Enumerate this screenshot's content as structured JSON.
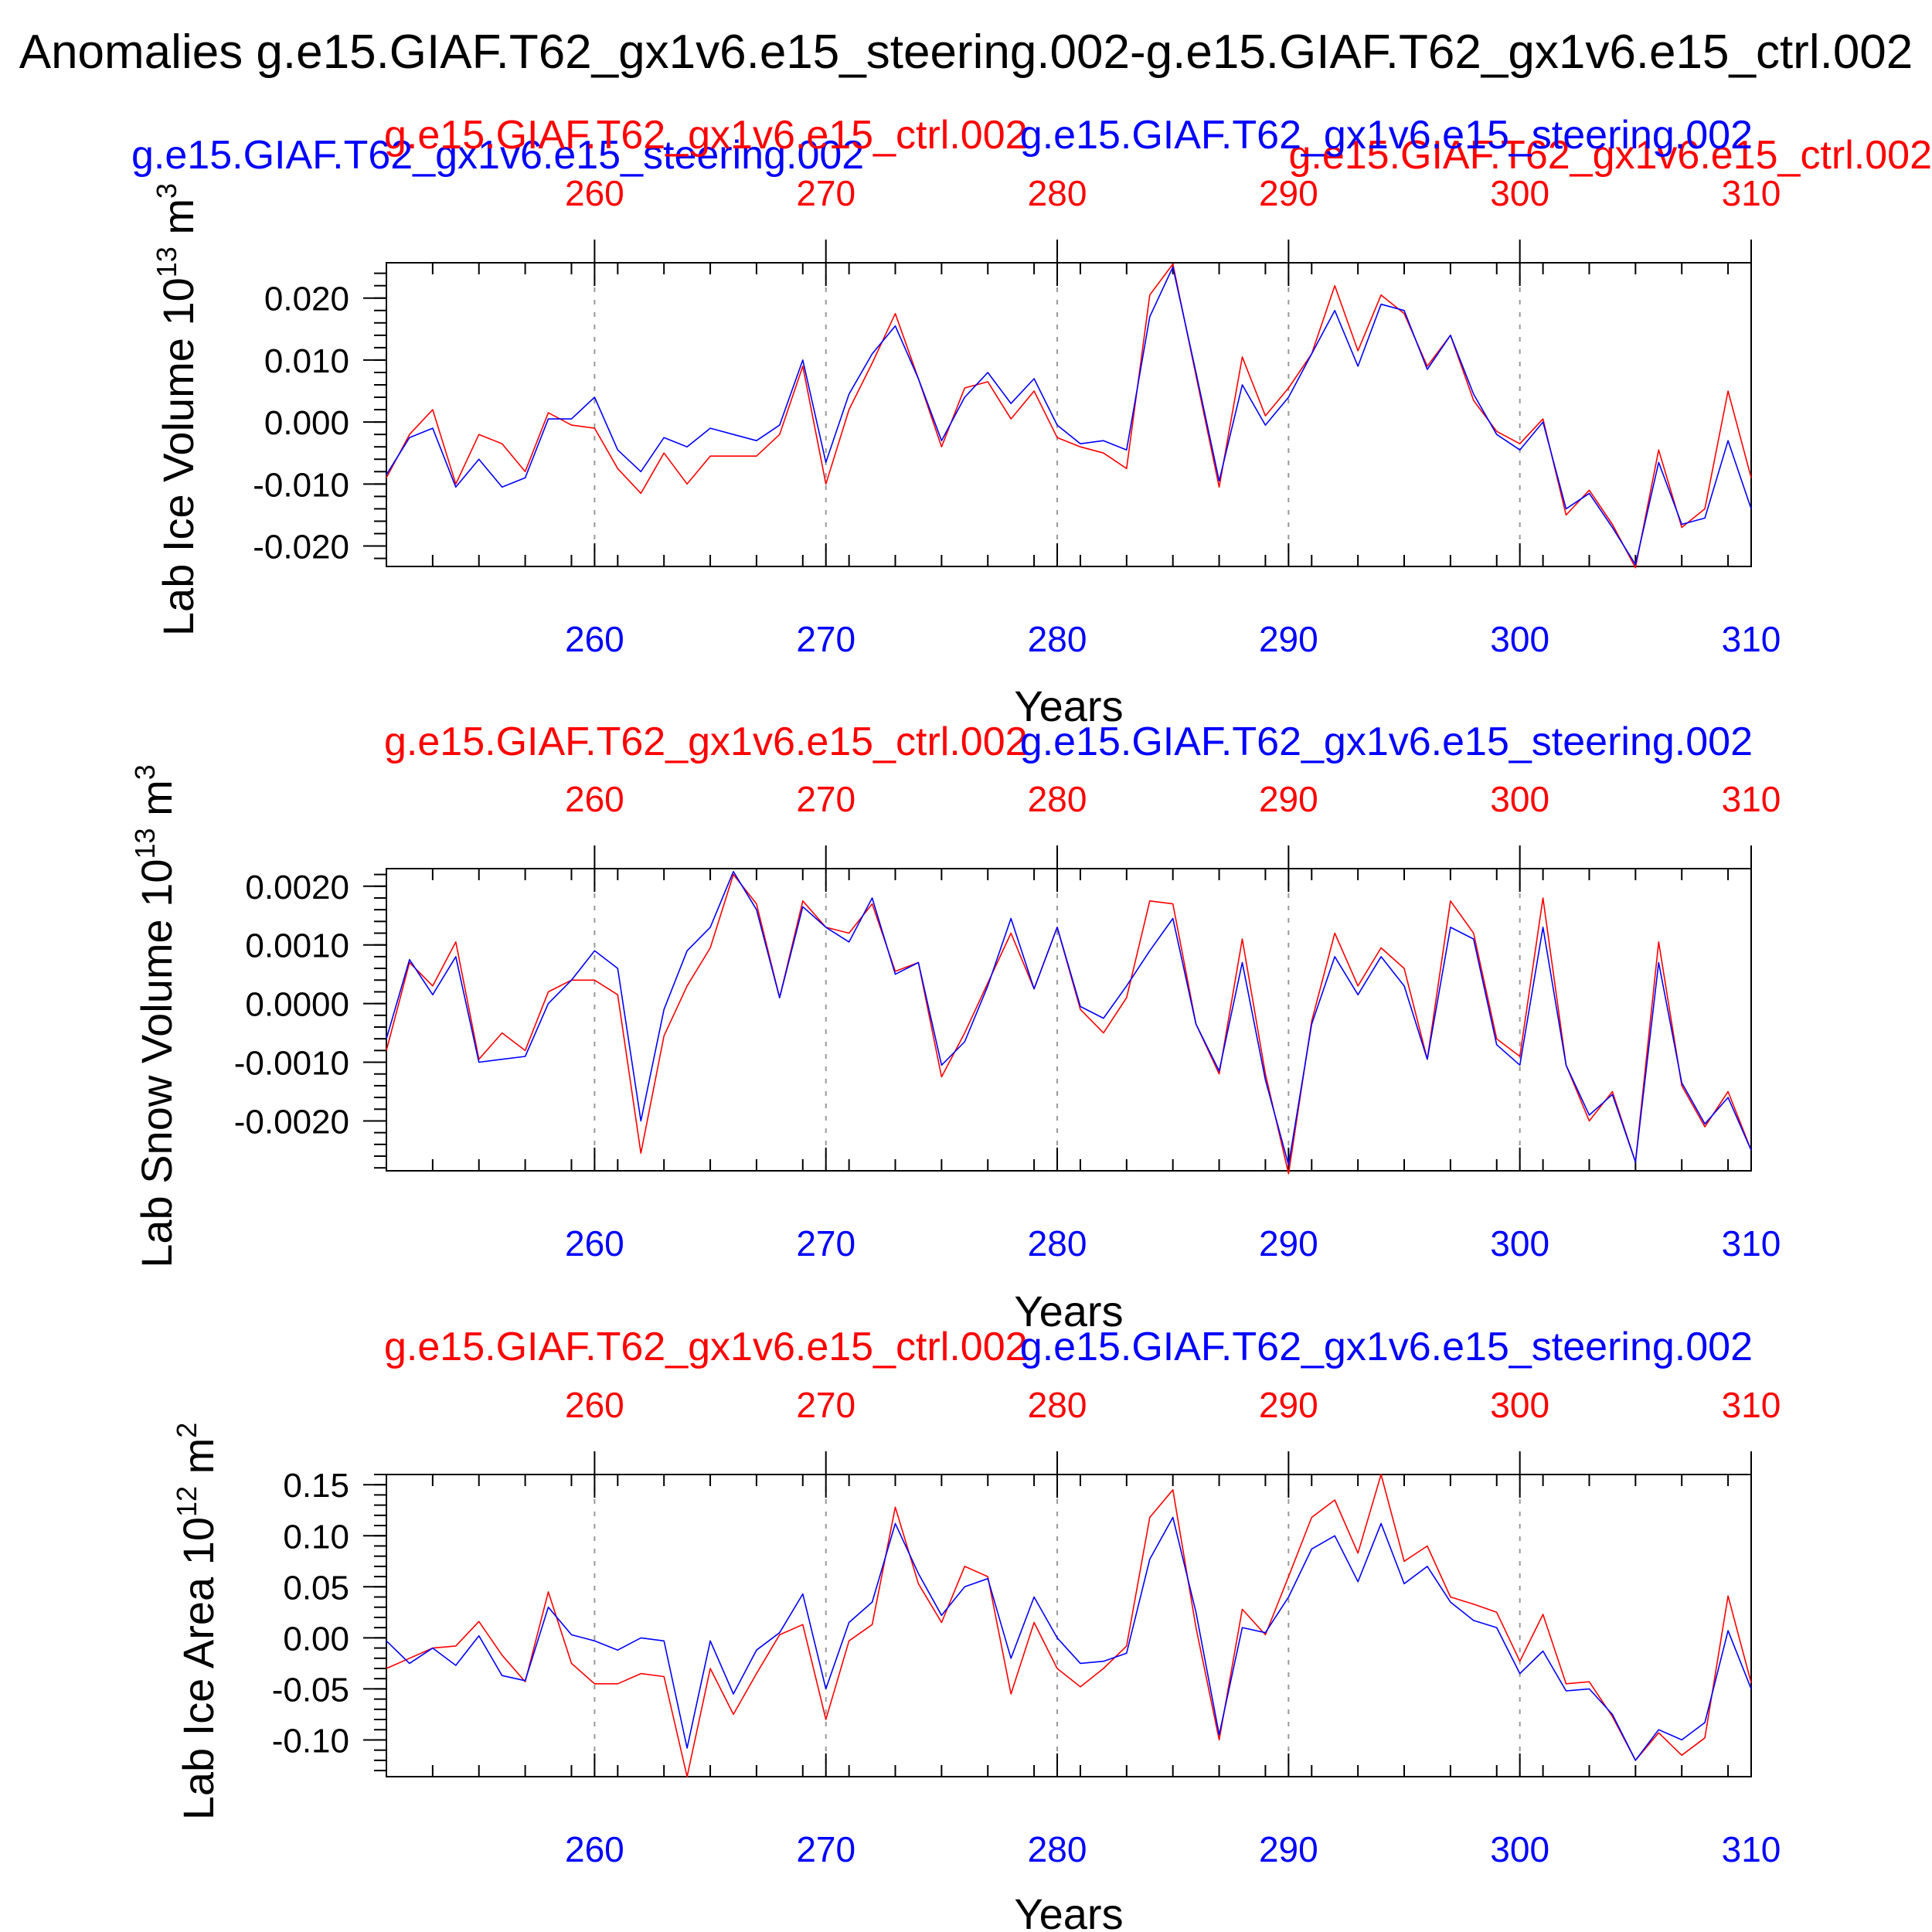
{
  "figure": {
    "main_title": "Anomalies g.e15.GIAF.T62_gx1v6.e15_steering.002-g.e15.GIAF.T62_gx1v6.e15_ctrl.002",
    "colors": {
      "ctrl": "#ff0000",
      "steering": "#0000ff",
      "axis": "#000000",
      "grid": "#999999"
    }
  },
  "chart_data": [
    {
      "type": "line",
      "title_left": "g.e15.GIAF.T62_gx1v6.e15_steering.002",
      "title_right": "g.e15.GIAF.T62_gx1v6.e15_ctrl.002",
      "top_series_label": "g.e15.GIAF.T62_gx1v6.e15_ctrl.002",
      "bottom_series_label": "g.e15.GIAF.T62_gx1v6.e15_steering.002",
      "ylabel": "Lab Ice Volume 10",
      "ylabel_exp": "13",
      "ylabel_unit": "m",
      "ylabel_unit_exp": "3",
      "xlabel": "Years",
      "x_ticks": [
        260,
        270,
        280,
        290,
        300,
        310
      ],
      "x_tick_labels": [
        "260",
        "270",
        "280",
        "290",
        "300",
        "310"
      ],
      "y_ticks": [
        -0.02,
        -0.01,
        0.0,
        0.01,
        0.02
      ],
      "y_tick_labels": [
        "-0.020",
        "-0.010",
        "0.000",
        "0.010",
        "0.020"
      ],
      "xlim": [
        251,
        310
      ],
      "ylim": [
        -0.0233,
        0.0257
      ],
      "x": [
        251,
        252,
        253,
        254,
        255,
        256,
        257,
        258,
        259,
        260,
        261,
        262,
        263,
        264,
        265,
        266,
        267,
        268,
        269,
        270,
        271,
        272,
        273,
        274,
        275,
        276,
        277,
        278,
        279,
        280,
        281,
        282,
        283,
        284,
        285,
        286,
        287,
        288,
        289,
        290,
        291,
        292,
        293,
        294,
        295,
        296,
        297,
        298,
        299,
        300,
        301,
        302,
        303,
        304,
        305,
        306,
        307,
        308,
        309,
        310
      ],
      "series": [
        {
          "name": "g.e15.GIAF.T62_gx1v6.e15_ctrl.002",
          "color": "#ff0000",
          "values": [
            -0.009,
            -0.002,
            0.002,
            -0.01,
            -0.002,
            -0.0035,
            -0.008,
            0.0015,
            -0.0005,
            -0.001,
            -0.0075,
            -0.0115,
            -0.005,
            -0.01,
            -0.0055,
            -0.0055,
            -0.0055,
            -0.002,
            0.009,
            -0.01,
            0.002,
            0.0095,
            0.0175,
            0.007,
            -0.004,
            0.0055,
            0.0065,
            0.0005,
            0.005,
            -0.0025,
            -0.004,
            -0.005,
            -0.0075,
            0.0205,
            0.0255,
            0.0075,
            -0.0105,
            0.0105,
            0.001,
            0.0055,
            0.011,
            0.022,
            0.0115,
            0.0205,
            0.0175,
            0.009,
            0.014,
            0.0035,
            -0.0015,
            -0.0035,
            0.0005,
            -0.015,
            -0.011,
            -0.0165,
            -0.0235,
            -0.0045,
            -0.017,
            -0.014,
            0.005,
            -0.009
          ]
        },
        {
          "name": "g.e15.GIAF.T62_gx1v6.e15_steering.002",
          "color": "#0000ff",
          "values": [
            -0.0085,
            -0.0025,
            -0.001,
            -0.0105,
            -0.006,
            -0.0105,
            -0.009,
            0.0005,
            0.0005,
            0.004,
            -0.0045,
            -0.008,
            -0.0025,
            -0.004,
            -0.001,
            -0.002,
            -0.003,
            -0.0005,
            0.01,
            -0.0065,
            0.0045,
            0.011,
            0.0155,
            0.007,
            -0.003,
            0.004,
            0.008,
            0.003,
            0.007,
            -0.0005,
            -0.0035,
            -0.003,
            -0.0045,
            0.017,
            0.025,
            0.008,
            -0.0095,
            0.006,
            -0.0005,
            0.004,
            0.011,
            0.018,
            0.009,
            0.019,
            0.018,
            0.0085,
            0.014,
            0.0045,
            -0.002,
            -0.0045,
            0.0,
            -0.014,
            -0.0115,
            -0.017,
            -0.023,
            -0.0065,
            -0.0165,
            -0.0155,
            -0.003,
            -0.014
          ]
        }
      ]
    },
    {
      "type": "line",
      "top_series_label": "g.e15.GIAF.T62_gx1v6.e15_ctrl.002",
      "bottom_series_label": "g.e15.GIAF.T62_gx1v6.e15_steering.002",
      "ylabel": "Lab Snow Volume 10",
      "ylabel_exp": "13",
      "ylabel_unit": "m",
      "ylabel_unit_exp": "3",
      "xlabel": "Years",
      "x_ticks": [
        260,
        270,
        280,
        290,
        300,
        310
      ],
      "x_tick_labels": [
        "260",
        "270",
        "280",
        "290",
        "300",
        "310"
      ],
      "y_ticks": [
        -0.002,
        -0.001,
        0.0,
        0.001,
        0.002
      ],
      "y_tick_labels": [
        "-0.0020",
        "-0.0010",
        "0.0000",
        "0.0010",
        "0.0020"
      ],
      "xlim": [
        251,
        310
      ],
      "ylim": [
        -0.00285,
        0.0023
      ],
      "x": [
        251,
        252,
        253,
        254,
        255,
        256,
        257,
        258,
        259,
        260,
        261,
        262,
        263,
        264,
        265,
        266,
        267,
        268,
        269,
        270,
        271,
        272,
        273,
        274,
        275,
        276,
        277,
        278,
        279,
        280,
        281,
        282,
        283,
        284,
        285,
        286,
        287,
        288,
        289,
        290,
        291,
        292,
        293,
        294,
        295,
        296,
        297,
        298,
        299,
        300,
        301,
        302,
        303,
        304,
        305,
        306,
        307,
        308,
        309,
        310
      ],
      "series": [
        {
          "name": "g.e15.GIAF.T62_gx1v6.e15_ctrl.002",
          "color": "#ff0000",
          "values": [
            -0.0008,
            0.0007,
            0.0003,
            0.00105,
            -0.00095,
            -0.0005,
            -0.0008,
            0.0002,
            0.0004,
            0.0004,
            0.00015,
            -0.00255,
            -0.00055,
            0.0003,
            0.00095,
            0.0022,
            0.0017,
            0.0001,
            0.00175,
            0.0013,
            0.0012,
            0.0017,
            0.00055,
            0.0007,
            -0.00125,
            -0.0005,
            0.00035,
            0.0012,
            0.00025,
            0.0013,
            -0.0001,
            -0.0005,
            0.0001,
            0.00175,
            0.0017,
            -0.00035,
            -0.0012,
            0.0011,
            -0.0012,
            -0.0029,
            -0.0003,
            0.0012,
            0.0003,
            0.00095,
            0.0006,
            -0.00095,
            0.00175,
            0.0012,
            -0.0006,
            -0.0009,
            0.0018,
            -0.00105,
            -0.002,
            -0.0015,
            -0.0027,
            0.00105,
            -0.0014,
            -0.0021,
            -0.0015,
            -0.0025
          ]
        },
        {
          "name": "g.e15.GIAF.T62_gx1v6.e15_steering.002",
          "color": "#0000ff",
          "values": [
            -0.0006,
            0.00075,
            0.00015,
            0.0008,
            -0.001,
            -0.00095,
            -0.0009,
            0.0,
            0.0004,
            0.0009,
            0.0006,
            -0.002,
            -0.0001,
            0.0009,
            0.0013,
            0.00225,
            0.0016,
            0.0001,
            0.00165,
            0.0013,
            0.00105,
            0.0018,
            0.0005,
            0.0007,
            -0.00105,
            -0.00065,
            0.0003,
            0.00145,
            0.00025,
            0.0013,
            -5e-05,
            -0.00025,
            0.0003,
            0.0009,
            0.00145,
            -0.00035,
            -0.00115,
            0.0007,
            -0.0013,
            -0.00275,
            -0.00035,
            0.0008,
            0.00015,
            0.0008,
            0.0003,
            -0.00095,
            0.0013,
            0.0011,
            -0.0007,
            -0.00105,
            0.0013,
            -0.00105,
            -0.0019,
            -0.00155,
            -0.0027,
            0.0007,
            -0.00135,
            -0.00205,
            -0.0016,
            -0.0025
          ]
        }
      ]
    },
    {
      "type": "line",
      "top_series_label": "g.e15.GIAF.T62_gx1v6.e15_ctrl.002",
      "bottom_series_label": "g.e15.GIAF.T62_gx1v6.e15_steering.002",
      "ylabel": "Lab Ice Area 10",
      "ylabel_exp": "12",
      "ylabel_unit": "m",
      "ylabel_unit_exp": "2",
      "xlabel": "Years",
      "x_ticks": [
        260,
        270,
        280,
        290,
        300,
        310
      ],
      "x_tick_labels": [
        "260",
        "270",
        "280",
        "290",
        "300",
        "310"
      ],
      "y_ticks": [
        -0.1,
        -0.05,
        0.0,
        0.05,
        0.1,
        0.15
      ],
      "y_tick_labels": [
        "-0.10",
        "-0.05",
        "0.00",
        "0.05",
        "0.10",
        "0.15"
      ],
      "xlim": [
        251,
        310
      ],
      "ylim": [
        -0.136,
        0.16
      ],
      "x": [
        251,
        252,
        253,
        254,
        255,
        256,
        257,
        258,
        259,
        260,
        261,
        262,
        263,
        264,
        265,
        266,
        267,
        268,
        269,
        270,
        271,
        272,
        273,
        274,
        275,
        276,
        277,
        278,
        279,
        280,
        281,
        282,
        283,
        284,
        285,
        286,
        287,
        288,
        289,
        290,
        291,
        292,
        293,
        294,
        295,
        296,
        297,
        298,
        299,
        300,
        301,
        302,
        303,
        304,
        305,
        306,
        307,
        308,
        309,
        310
      ],
      "series": [
        {
          "name": "g.e15.GIAF.T62_gx1v6.e15_ctrl.002",
          "color": "#ff0000",
          "values": [
            -0.03,
            -0.02,
            -0.01,
            -0.008,
            0.016,
            -0.017,
            -0.043,
            0.045,
            -0.025,
            -0.045,
            -0.045,
            -0.035,
            -0.038,
            -0.136,
            -0.03,
            -0.075,
            -0.035,
            0.003,
            0.013,
            -0.08,
            -0.003,
            0.013,
            0.128,
            0.053,
            0.015,
            0.07,
            0.06,
            -0.055,
            0.015,
            -0.03,
            -0.048,
            -0.03,
            -0.008,
            0.118,
            0.145,
            0.01,
            -0.1,
            0.028,
            0.003,
            0.06,
            0.118,
            0.135,
            0.083,
            0.16,
            0.075,
            0.09,
            0.04,
            0.033,
            0.025,
            -0.023,
            0.023,
            -0.045,
            -0.043,
            -0.077,
            -0.12,
            -0.093,
            -0.115,
            -0.098,
            0.041,
            -0.044
          ]
        },
        {
          "name": "g.e15.GIAF.T62_gx1v6.e15_steering.002",
          "color": "#0000ff",
          "values": [
            -0.003,
            -0.025,
            -0.01,
            -0.027,
            0.002,
            -0.037,
            -0.042,
            0.03,
            0.003,
            -0.003,
            -0.012,
            0.0,
            -0.003,
            -0.108,
            -0.003,
            -0.055,
            -0.012,
            0.005,
            0.043,
            -0.05,
            0.015,
            0.035,
            0.112,
            0.063,
            0.022,
            0.05,
            0.058,
            -0.02,
            0.04,
            0.0,
            -0.025,
            -0.023,
            -0.015,
            0.077,
            0.118,
            0.025,
            -0.095,
            0.01,
            0.005,
            0.04,
            0.087,
            0.1,
            0.055,
            0.112,
            0.053,
            0.07,
            0.035,
            0.017,
            0.01,
            -0.035,
            -0.013,
            -0.052,
            -0.05,
            -0.075,
            -0.12,
            -0.09,
            -0.1,
            -0.083,
            0.007,
            -0.05
          ]
        }
      ]
    }
  ]
}
